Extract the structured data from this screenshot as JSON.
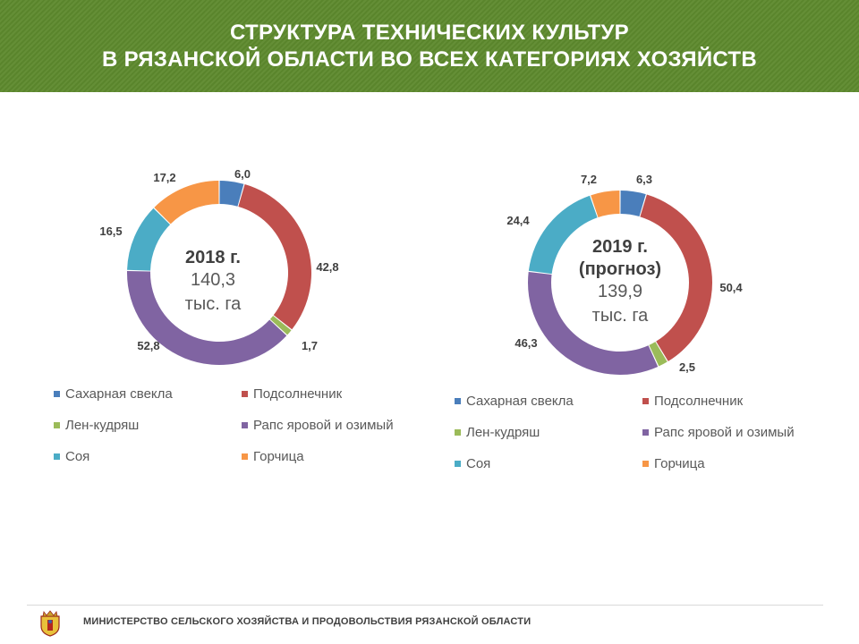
{
  "header": {
    "title_line1": "СТРУКТУРА ТЕХНИЧЕСКИХ КУЛЬТУР",
    "title_line2": "В РЯЗАНСКОЙ ОБЛАСТИ ВО ВСЕХ КАТЕГОРИЯХ ХОЗЯЙСТВ"
  },
  "footer": {
    "text": "МИНИСТЕРСТВО СЕЛЬСКОГО ХОЗЯЙСТВА И ПРОДОВОЛЬСТВИЯ РЯЗАНСКОЙ ОБЛАСТИ",
    "crest_icon": "ryazan-coat-of-arms-icon"
  },
  "colors": {
    "header_bg": "#5e8a2e",
    "series": [
      "#4a7ebb",
      "#c0504d",
      "#9bbb59",
      "#8064a2",
      "#4bacc6",
      "#f79646"
    ]
  },
  "chart_data": [
    {
      "type": "pie",
      "donut": true,
      "center_title": "2018 г.",
      "center_value": "140,3",
      "center_unit": "тыс. га",
      "categories": [
        "Сахарная свекла",
        "Подсолнечник",
        "Лен-кудряш",
        "Рапс яровой и озимый",
        "Соя",
        "Горчица"
      ],
      "values": [
        6.0,
        42.8,
        1.7,
        52.8,
        16.5,
        17.2
      ],
      "labels": [
        "6,0",
        "42,8",
        "1,7",
        "52,8",
        "16,5",
        "17,2"
      ],
      "legend_position": "bottom"
    },
    {
      "type": "pie",
      "donut": true,
      "center_title": "2019 г.",
      "center_title2": "(прогноз)",
      "center_value": "139,9",
      "center_unit": "тыс. га",
      "categories": [
        "Сахарная свекла",
        "Подсолнечник",
        "Лен-кудряш",
        "Рапс яровой и озимый",
        "Соя",
        "Горчица"
      ],
      "values": [
        6.3,
        50.4,
        2.5,
        46.3,
        24.4,
        7.2
      ],
      "labels": [
        "6,3",
        "50,4",
        "2,5",
        "46,3",
        "24,4",
        "7,2"
      ],
      "legend_position": "bottom"
    }
  ]
}
